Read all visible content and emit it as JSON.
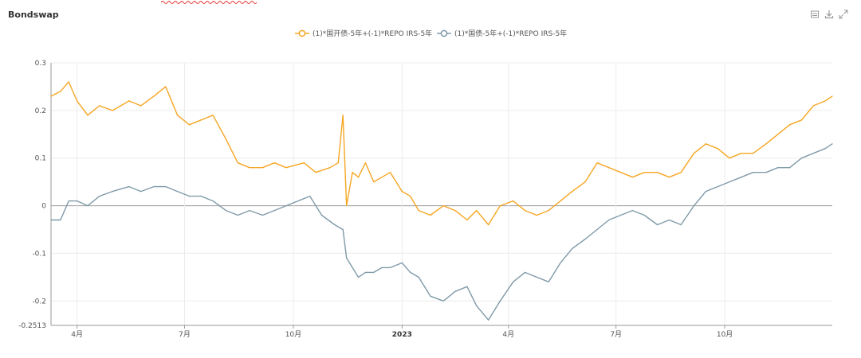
{
  "panel": {
    "title": "Bondswap"
  },
  "toolbar": {
    "icons": [
      "data-view-icon",
      "download-icon",
      "expand-icon"
    ]
  },
  "chart_data": {
    "type": "line",
    "xlabel": "",
    "ylabel": "",
    "ylim": [
      -0.2513,
      0.3
    ],
    "x_range": [
      "2022-03-10",
      "2023-12-31"
    ],
    "yticks": [
      {
        "value": 0.3,
        "label": "0.3"
      },
      {
        "value": 0.2,
        "label": "0.2"
      },
      {
        "value": 0.1,
        "label": "0.1"
      },
      {
        "value": 0,
        "label": "0"
      },
      {
        "value": -0.1,
        "label": "-0.1"
      },
      {
        "value": -0.2,
        "label": "-0.2"
      },
      {
        "value": -0.2513,
        "label": "-0.2513"
      }
    ],
    "xticks": [
      {
        "date": "2022-04-01",
        "label": "4月",
        "bold": false
      },
      {
        "date": "2022-07-01",
        "label": "7月",
        "bold": false
      },
      {
        "date": "2022-10-01",
        "label": "10月",
        "bold": false
      },
      {
        "date": "2023-01-01",
        "label": "2023",
        "bold": true
      },
      {
        "date": "2023-04-01",
        "label": "4月",
        "bold": false
      },
      {
        "date": "2023-07-01",
        "label": "7月",
        "bold": false
      },
      {
        "date": "2023-10-01",
        "label": "10月",
        "bold": false
      }
    ],
    "legend_position": "top-center",
    "grid": true,
    "series": [
      {
        "name": "(1)*国开债-5年+(-1)*REPO IRS-5年",
        "color": "#f5a623",
        "x": [
          "2022-03-10",
          "2022-03-18",
          "2022-03-25",
          "2022-04-01",
          "2022-04-10",
          "2022-04-20",
          "2022-05-01",
          "2022-05-15",
          "2022-05-25",
          "2022-06-05",
          "2022-06-15",
          "2022-06-25",
          "2022-07-05",
          "2022-07-15",
          "2022-07-25",
          "2022-08-05",
          "2022-08-15",
          "2022-08-25",
          "2022-09-05",
          "2022-09-15",
          "2022-09-25",
          "2022-10-10",
          "2022-10-20",
          "2022-11-01",
          "2022-11-08",
          "2022-11-12",
          "2022-11-15",
          "2022-11-20",
          "2022-11-25",
          "2022-12-01",
          "2022-12-08",
          "2022-12-15",
          "2022-12-22",
          "2023-01-01",
          "2023-01-08",
          "2023-01-15",
          "2023-01-25",
          "2023-02-05",
          "2023-02-15",
          "2023-02-25",
          "2023-03-05",
          "2023-03-15",
          "2023-03-25",
          "2023-04-05",
          "2023-04-15",
          "2023-04-25",
          "2023-05-05",
          "2023-05-15",
          "2023-05-25",
          "2023-06-05",
          "2023-06-15",
          "2023-06-25",
          "2023-07-05",
          "2023-07-15",
          "2023-07-25",
          "2023-08-05",
          "2023-08-15",
          "2023-08-25",
          "2023-09-05",
          "2023-09-15",
          "2023-09-25",
          "2023-10-05",
          "2023-10-15",
          "2023-10-25",
          "2023-11-05",
          "2023-11-15",
          "2023-11-25",
          "2023-12-05",
          "2023-12-15",
          "2023-12-25",
          "2023-12-31"
        ],
        "values": [
          0.23,
          0.24,
          0.26,
          0.22,
          0.19,
          0.21,
          0.2,
          0.22,
          0.21,
          0.23,
          0.25,
          0.19,
          0.17,
          0.18,
          0.19,
          0.14,
          0.09,
          0.08,
          0.08,
          0.09,
          0.08,
          0.09,
          0.07,
          0.08,
          0.09,
          0.19,
          0.0,
          0.07,
          0.06,
          0.09,
          0.05,
          0.06,
          0.07,
          0.03,
          0.02,
          -0.01,
          -0.02,
          0.0,
          -0.01,
          -0.03,
          -0.01,
          -0.04,
          0.0,
          0.01,
          -0.01,
          -0.02,
          -0.01,
          0.01,
          0.03,
          0.05,
          0.09,
          0.08,
          0.07,
          0.06,
          0.07,
          0.07,
          0.06,
          0.07,
          0.11,
          0.13,
          0.12,
          0.1,
          0.11,
          0.11,
          0.13,
          0.15,
          0.17,
          0.18,
          0.21,
          0.22,
          0.23
        ]
      },
      {
        "name": "(1)*国债-5年+(-1)*REPO IRS-5年",
        "color": "#7f9aa8",
        "x": [
          "2022-03-10",
          "2022-03-18",
          "2022-03-25",
          "2022-04-01",
          "2022-04-10",
          "2022-04-20",
          "2022-05-01",
          "2022-05-15",
          "2022-05-25",
          "2022-06-05",
          "2022-06-15",
          "2022-06-25",
          "2022-07-05",
          "2022-07-15",
          "2022-07-25",
          "2022-08-05",
          "2022-08-15",
          "2022-08-25",
          "2022-09-05",
          "2022-09-15",
          "2022-09-25",
          "2022-10-05",
          "2022-10-15",
          "2022-10-25",
          "2022-11-05",
          "2022-11-12",
          "2022-11-15",
          "2022-11-20",
          "2022-11-25",
          "2022-12-01",
          "2022-12-08",
          "2022-12-15",
          "2022-12-22",
          "2023-01-01",
          "2023-01-08",
          "2023-01-15",
          "2023-01-25",
          "2023-02-05",
          "2023-02-15",
          "2023-02-25",
          "2023-03-05",
          "2023-03-15",
          "2023-03-25",
          "2023-04-05",
          "2023-04-15",
          "2023-04-25",
          "2023-05-05",
          "2023-05-15",
          "2023-05-25",
          "2023-06-05",
          "2023-06-15",
          "2023-06-25",
          "2023-07-05",
          "2023-07-15",
          "2023-07-25",
          "2023-08-05",
          "2023-08-15",
          "2023-08-25",
          "2023-09-05",
          "2023-09-15",
          "2023-09-25",
          "2023-10-05",
          "2023-10-15",
          "2023-10-25",
          "2023-11-05",
          "2023-11-15",
          "2023-11-25",
          "2023-12-05",
          "2023-12-15",
          "2023-12-25",
          "2023-12-31"
        ],
        "values": [
          -0.03,
          -0.03,
          0.01,
          0.01,
          0.0,
          0.02,
          0.03,
          0.04,
          0.03,
          0.04,
          0.04,
          0.03,
          0.02,
          0.02,
          0.01,
          -0.01,
          -0.02,
          -0.01,
          -0.02,
          -0.01,
          0.0,
          0.01,
          0.02,
          -0.02,
          -0.04,
          -0.05,
          -0.11,
          -0.13,
          -0.15,
          -0.14,
          -0.14,
          -0.13,
          -0.13,
          -0.12,
          -0.14,
          -0.15,
          -0.19,
          -0.2,
          -0.18,
          -0.17,
          -0.21,
          -0.24,
          -0.2,
          -0.16,
          -0.14,
          -0.15,
          -0.16,
          -0.12,
          -0.09,
          -0.07,
          -0.05,
          -0.03,
          -0.02,
          -0.01,
          -0.02,
          -0.04,
          -0.03,
          -0.04,
          0.0,
          0.03,
          0.04,
          0.05,
          0.06,
          0.07,
          0.07,
          0.08,
          0.08,
          0.1,
          0.11,
          0.12,
          0.13
        ]
      }
    ]
  }
}
